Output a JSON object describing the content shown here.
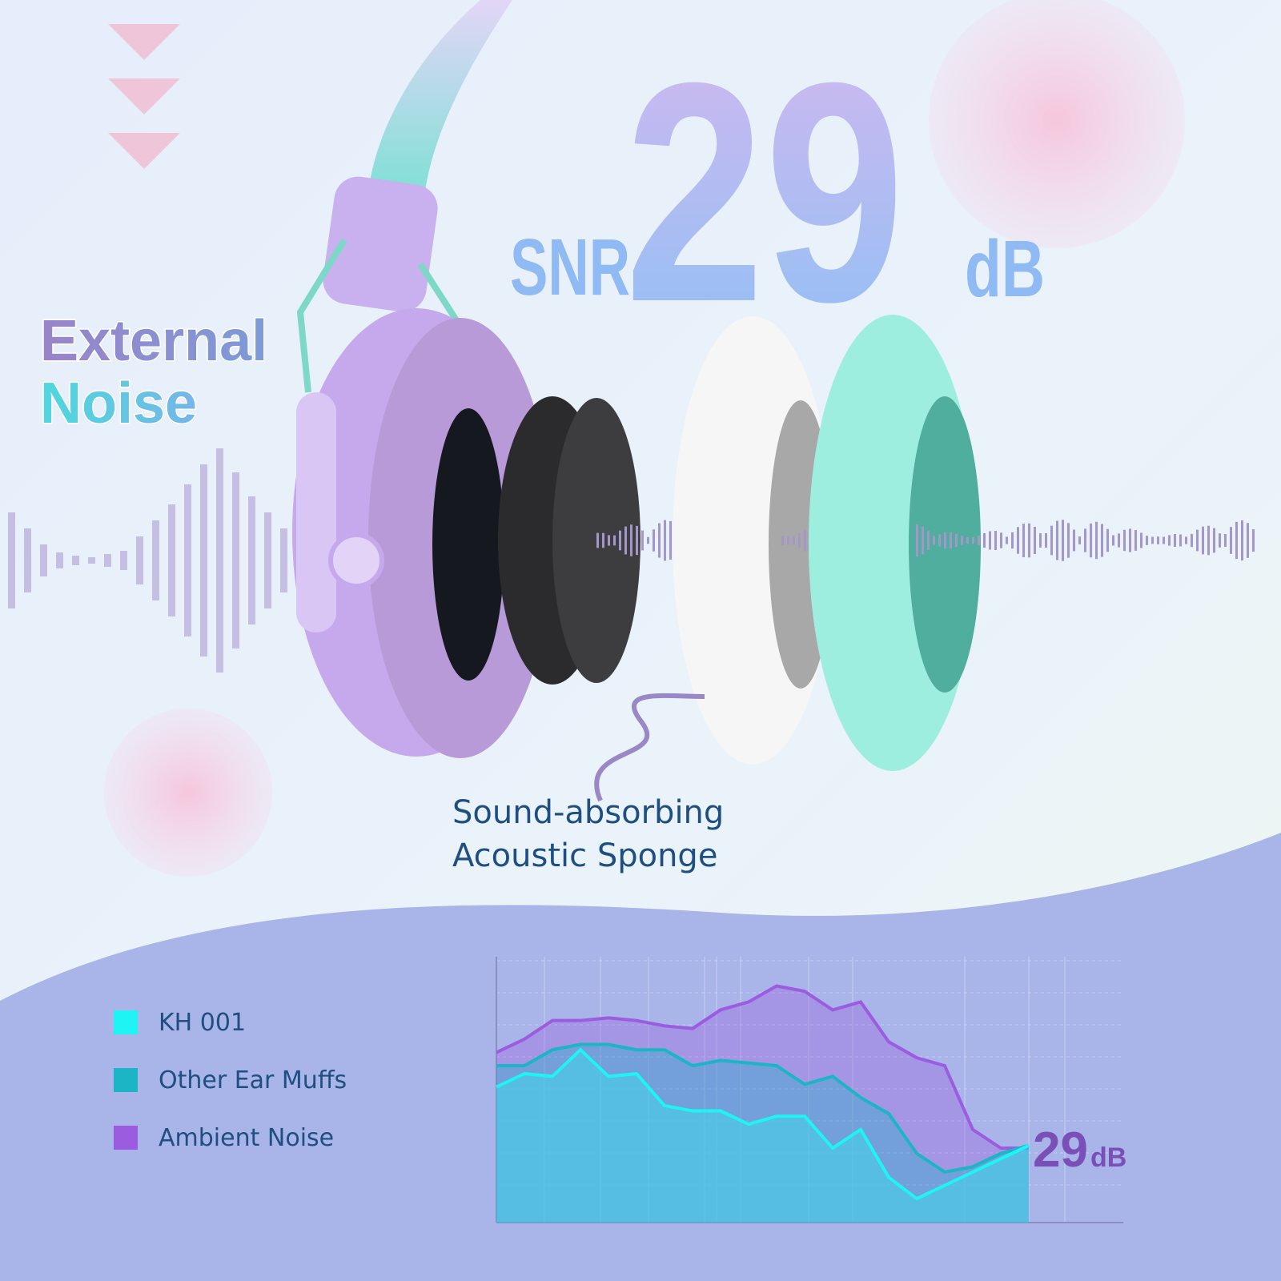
{
  "header": {
    "snr": "SNR",
    "value": "29",
    "unit": "dB"
  },
  "labels": {
    "external": "External",
    "noise": "Noise",
    "sponge_line1": "Sound-absorbing",
    "sponge_line2": "Acoustic Sponge"
  },
  "chart_data": {
    "type": "line",
    "ylim": [
      0,
      100
    ],
    "series": [
      {
        "name": "KH 001",
        "color": "#1ff4f4",
        "values": [
          51,
          56,
          55,
          65,
          55,
          56,
          44,
          42,
          42,
          37,
          40,
          40,
          28,
          35,
          17,
          9,
          14,
          19,
          24,
          29
        ]
      },
      {
        "name": "Other Ear Muffs",
        "color": "#1bb5c6",
        "values": [
          59,
          59,
          65,
          67,
          67,
          65,
          65,
          59,
          61,
          60,
          59,
          52,
          55,
          47,
          41,
          26,
          19,
          21,
          26,
          29
        ]
      },
      {
        "name": "Ambient Noise",
        "color": "#9b5ce0",
        "values": [
          64,
          69,
          76,
          76,
          77,
          76,
          74,
          73,
          80,
          83,
          89,
          87,
          80,
          83,
          68,
          62,
          59,
          35,
          28,
          28
        ]
      }
    ],
    "annotation": "29",
    "annotation_unit": "dB"
  }
}
